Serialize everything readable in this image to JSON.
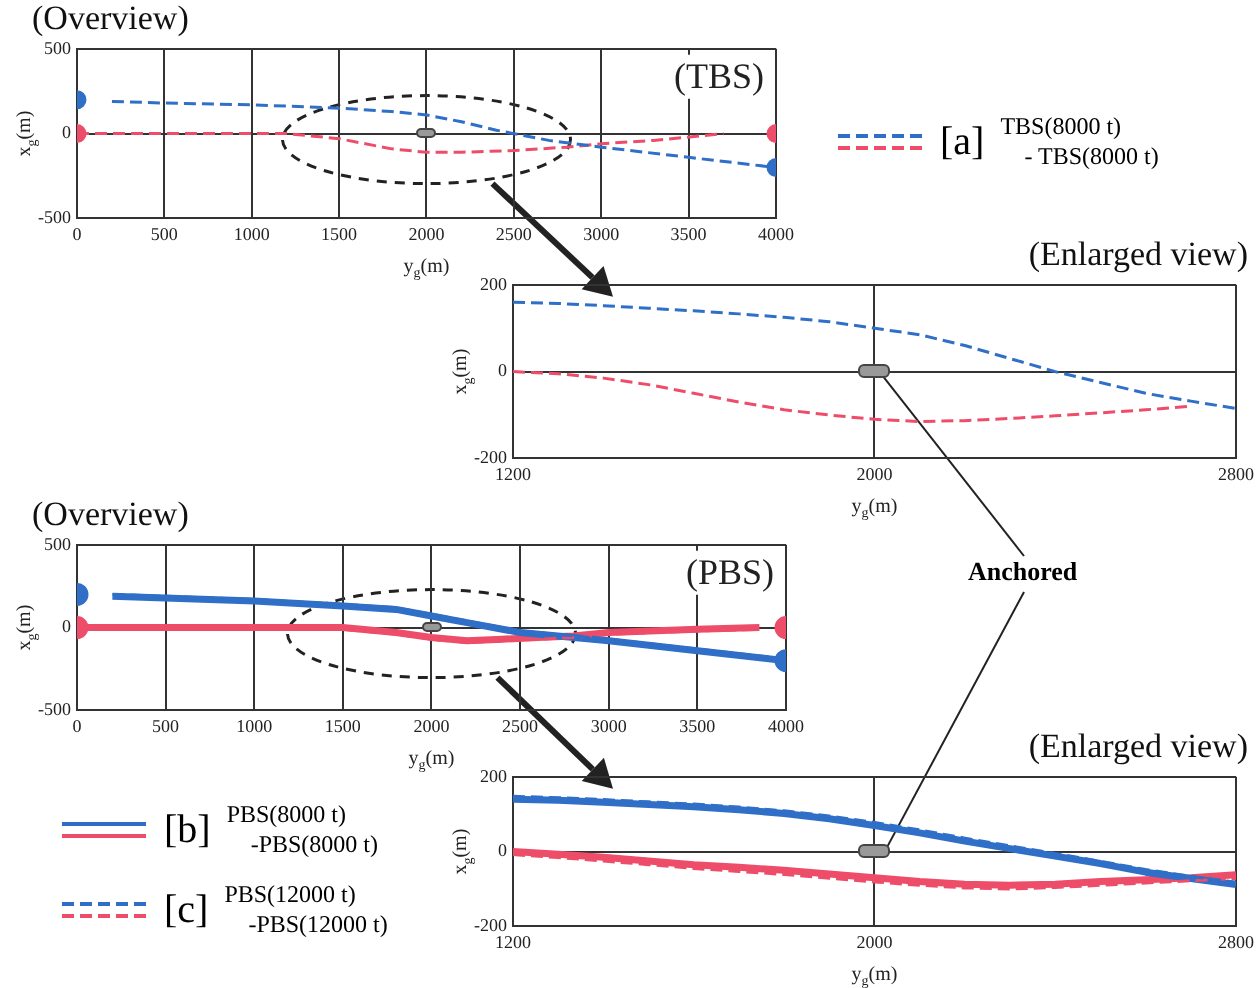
{
  "chart_data": [
    {
      "type": "line",
      "title": "(Overview)",
      "xlabel": "y$_{g}$(m)",
      "ylabel": "x$_{g}$(m)",
      "xlim": [
        0,
        4000
      ],
      "ylim": [
        -500,
        500
      ],
      "xticks": [
        0,
        500,
        1000,
        1500,
        2000,
        2500,
        3000,
        3500,
        4000
      ],
      "yticks": [
        -500,
        0,
        500
      ],
      "grid": true,
      "marker": "none",
      "line_style": "dashed",
      "annotations": [
        "(TBS)",
        "[a]",
        "TBS(8000 t)",
        "- TBS(8000 t)"
      ],
      "series": [
        {
          "color": "#2f6fc8",
          "x": [
            200,
            500,
            1000,
            1500,
            1800,
            2000,
            2200,
            2400,
            2500,
            2700,
            3000,
            3500,
            4000
          ],
          "values": [
            190,
            180,
            170,
            150,
            130,
            110,
            70,
            20,
            0,
            -40,
            -80,
            -140,
            -200
          ]
        },
        {
          "color": "#ee4d6a",
          "x": [
            0,
            500,
            1000,
            1200,
            1500,
            1800,
            2000,
            2200,
            2500,
            2800,
            3000,
            3300,
            3700
          ],
          "values": [
            0,
            0,
            0,
            0,
            -30,
            -90,
            -110,
            -110,
            -100,
            -80,
            -60,
            -40,
            0
          ]
        },
        {
          "type": "scatter",
          "marker": "circle",
          "color": "#2f6fc8",
          "x": [
            0,
            4000
          ],
          "values": [
            200,
            -200
          ]
        },
        {
          "type": "scatter",
          "marker": "circle",
          "color": "#ee4d6a",
          "x": [
            0,
            4000
          ],
          "values": [
            0,
            0
          ]
        }
      ]
    },
    {
      "type": "line",
      "title": "(Enlarged view)",
      "xlabel": "y$_{g}$(m)",
      "ylabel": "x$_{g}$(m)",
      "xlim": [
        1200,
        2800
      ],
      "ylim": [
        -200,
        200
      ],
      "xticks": [
        1200,
        2000,
        2800
      ],
      "yticks": [
        -200,
        0,
        200
      ],
      "grid": true,
      "marker": "none",
      "line_style": "dashed",
      "annotations": [
        {
          "text": "Anchored",
          "x": 2000,
          "y": 0
        }
      ],
      "series": [
        {
          "color": "#2f6fc8",
          "x": [
            1200,
            1300,
            1400,
            1500,
            1600,
            1700,
            1800,
            1900,
            2000,
            2100,
            2200,
            2300,
            2400,
            2500,
            2600,
            2700,
            2800
          ],
          "values": [
            160,
            157,
            152,
            146,
            140,
            133,
            125,
            115,
            100,
            85,
            60,
            30,
            0,
            -25,
            -50,
            -68,
            -85
          ]
        },
        {
          "color": "#ee4d6a",
          "x": [
            1200,
            1300,
            1400,
            1500,
            1600,
            1700,
            1800,
            1900,
            2000,
            2100,
            2200,
            2300,
            2400,
            2500,
            2600,
            2700
          ],
          "values": [
            0,
            -5,
            -15,
            -30,
            -50,
            -70,
            -88,
            -100,
            -110,
            -115,
            -113,
            -108,
            -102,
            -95,
            -88,
            -80
          ]
        }
      ]
    },
    {
      "type": "line",
      "title": "(Overview)",
      "xlabel": "y$_{g}$(m)",
      "ylabel": "x$_{g}$(m)",
      "xlim": [
        0,
        4000
      ],
      "ylim": [
        -500,
        500
      ],
      "xticks": [
        0,
        500,
        1000,
        1500,
        2000,
        2500,
        3000,
        3500,
        4000
      ],
      "yticks": [
        -500,
        0,
        500
      ],
      "grid": true,
      "marker": "none",
      "annotations": [
        "(PBS)",
        "[b]",
        "PBS(8000 t)",
        "-PBS(8000 t)",
        "[c]",
        "PBS(12000 t)",
        "-PBS(12000 t)"
      ],
      "series": [
        {
          "color": "#2f6fc8",
          "line_style": "solid",
          "x": [
            200,
            1000,
            1500,
            1800,
            2000,
            2200,
            2400,
            2500,
            3000,
            3500,
            4000
          ],
          "values": [
            190,
            160,
            130,
            110,
            70,
            30,
            -10,
            -30,
            -80,
            -140,
            -200
          ]
        },
        {
          "color": "#ee4d6a",
          "line_style": "solid",
          "x": [
            0,
            1000,
            1500,
            1800,
            2000,
            2200,
            2400,
            2600,
            2800,
            3000,
            3500,
            3850
          ],
          "values": [
            0,
            0,
            0,
            -30,
            -60,
            -80,
            -70,
            -60,
            -50,
            -30,
            -10,
            0
          ]
        },
        {
          "color": "#2f6fc8",
          "line_style": "dashed",
          "x": [
            200,
            1000,
            1500,
            1800,
            2000,
            2200,
            2400,
            2500,
            3000,
            3500,
            4000
          ],
          "values": [
            200,
            170,
            140,
            120,
            80,
            40,
            0,
            -20,
            -70,
            -130,
            -190
          ]
        },
        {
          "color": "#ee4d6a",
          "line_style": "dashed",
          "x": [
            0,
            1000,
            1500,
            1800,
            2000,
            2200,
            2400,
            2600,
            2800,
            3000,
            3500,
            3850
          ],
          "values": [
            -10,
            -10,
            -10,
            -40,
            -70,
            -90,
            -80,
            -70,
            -60,
            -40,
            -20,
            -10
          ]
        },
        {
          "type": "scatter",
          "marker": "circle",
          "color": "#2f6fc8",
          "x": [
            0,
            4000
          ],
          "values": [
            200,
            -200
          ]
        },
        {
          "type": "scatter",
          "marker": "circle",
          "color": "#ee4d6a",
          "x": [
            0,
            4000
          ],
          "values": [
            0,
            0
          ]
        }
      ]
    },
    {
      "type": "line",
      "title": "(Enlarged view)",
      "xlabel": "y$_{g}$(m)",
      "ylabel": "x$_{g}$(m)",
      "xlim": [
        1200,
        2800
      ],
      "ylim": [
        -200,
        200
      ],
      "xticks": [
        1200,
        2000,
        2800
      ],
      "yticks": [
        -200,
        0,
        200
      ],
      "grid": true,
      "marker": "none",
      "series": [
        {
          "color": "#2f6fc8",
          "line_style": "solid",
          "x": [
            1200,
            1300,
            1400,
            1500,
            1600,
            1700,
            1800,
            1900,
            2000,
            2100,
            2200,
            2300,
            2400,
            2500,
            2600,
            2700,
            2800
          ],
          "values": [
            140,
            137,
            132,
            126,
            120,
            112,
            102,
            88,
            70,
            50,
            28,
            8,
            -12,
            -32,
            -55,
            -72,
            -88
          ]
        },
        {
          "color": "#ee4d6a",
          "line_style": "solid",
          "x": [
            1200,
            1300,
            1400,
            1500,
            1600,
            1700,
            1800,
            1900,
            2000,
            2100,
            2200,
            2300,
            2400,
            2500,
            2600,
            2700,
            2800
          ],
          "values": [
            0,
            -7,
            -15,
            -25,
            -35,
            -42,
            -50,
            -60,
            -70,
            -80,
            -87,
            -90,
            -87,
            -80,
            -75,
            -70,
            -62
          ]
        },
        {
          "color": "#2f6fc8",
          "line_style": "dashed",
          "x": [
            1200,
            1300,
            1400,
            1500,
            1600,
            1700,
            1800,
            1900,
            2000,
            2100,
            2200,
            2300,
            2400,
            2500,
            2600,
            2700,
            2800
          ],
          "values": [
            148,
            144,
            139,
            133,
            127,
            119,
            109,
            95,
            78,
            58,
            36,
            15,
            -5,
            -26,
            -48,
            -66,
            -82
          ]
        },
        {
          "color": "#ee4d6a",
          "line_style": "dashed",
          "x": [
            1200,
            1300,
            1400,
            1500,
            1600,
            1700,
            1800,
            1900,
            2000,
            2100,
            2200,
            2300,
            2400,
            2500,
            2600,
            2700,
            2800
          ],
          "values": [
            -8,
            -16,
            -25,
            -35,
            -45,
            -53,
            -61,
            -71,
            -81,
            -90,
            -97,
            -100,
            -96,
            -90,
            -84,
            -78,
            -72
          ]
        }
      ]
    }
  ]
}
